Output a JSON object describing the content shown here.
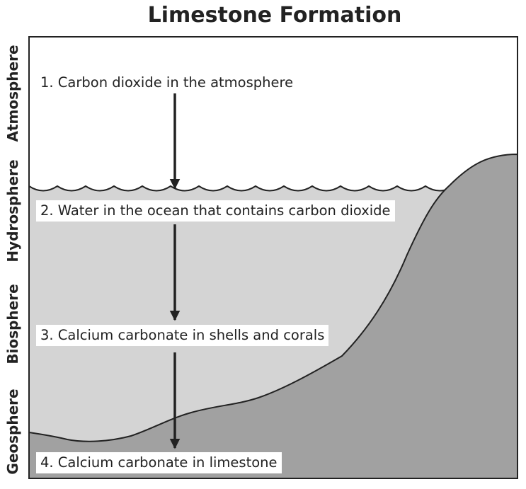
{
  "title": "Limestone Formation",
  "spheres": [
    "Atmosphere",
    "Hydrosphere",
    "Biosphere",
    "Geosphere"
  ],
  "steps": [
    "1. Carbon dioxide in the atmosphere",
    "2. Water in the ocean that contains carbon dioxide",
    "3. Calcium carbonate in shells and corals",
    "4. Calcium carbonate in limestone"
  ],
  "colors": {
    "ocean": "#d4d4d4",
    "land": "#a1a1a1",
    "outline": "#222222",
    "arrow": "#222222"
  }
}
